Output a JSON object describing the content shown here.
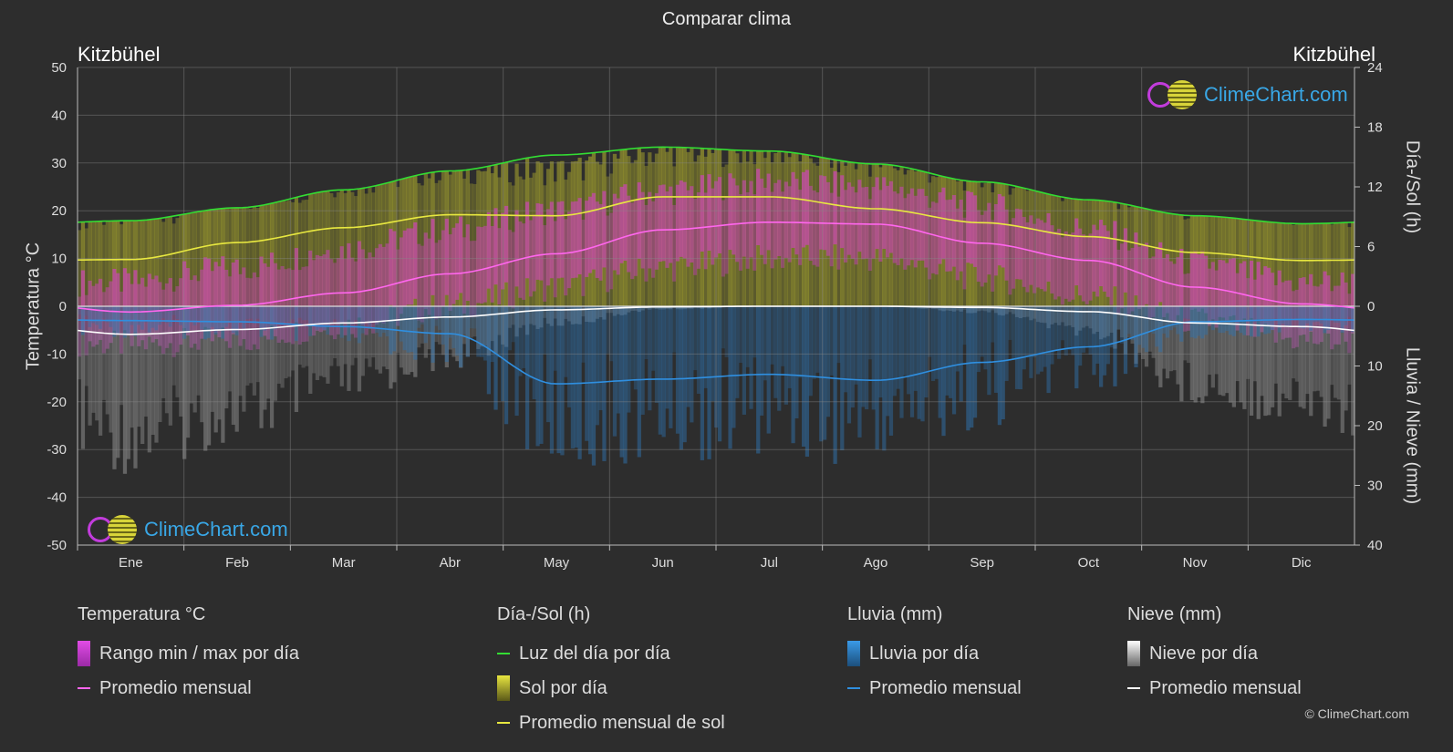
{
  "title": "Comparar clima",
  "location_left": "Kitzbühel",
  "location_right": "Kitzbühel",
  "brand": "ClimeChart.com",
  "copyright": "© ClimeChart.com",
  "colors": {
    "temp_range": "#d43cc8",
    "temp_avg": "#ff66ee",
    "daylight": "#33dd33",
    "sun_band": "#a8a62e",
    "sun_avg": "#e8e840",
    "rain_band": "#2f6fa8",
    "rain_avg": "#2f8fe0",
    "snow_band": "#8a8a8a",
    "snow_avg": "#ffffff"
  },
  "chart_data": {
    "type": "line",
    "categories": [
      "Ene",
      "Feb",
      "Mar",
      "Abr",
      "May",
      "Jun",
      "Jul",
      "Ago",
      "Sep",
      "Oct",
      "Nov",
      "Dic"
    ],
    "left_axis": {
      "label": "Temperatura °C",
      "min": -50,
      "max": 50,
      "ticks": [
        50,
        40,
        30,
        20,
        10,
        0,
        -10,
        -20,
        -30,
        -40,
        -50
      ]
    },
    "right_axis_top": {
      "label": "Día-/Sol (h)",
      "min": 0,
      "max": 24,
      "ticks": [
        24,
        18,
        12,
        6,
        0
      ]
    },
    "right_axis_bottom": {
      "label": "Lluvia / Nieve (mm)",
      "min": 0,
      "max": 40,
      "ticks": [
        0,
        10,
        20,
        30,
        40
      ]
    },
    "grid": true,
    "series": [
      {
        "name": "Luz del día por día",
        "axis": "hours",
        "values": [
          8.6,
          9.9,
          11.7,
          13.6,
          15.2,
          16.0,
          15.6,
          14.3,
          12.5,
          10.7,
          9.1,
          8.3
        ]
      },
      {
        "name": "Promedio mensual de sol",
        "axis": "hours",
        "values": [
          4.7,
          6.4,
          7.9,
          9.2,
          9.1,
          11.0,
          11.0,
          9.8,
          8.4,
          7.0,
          5.4,
          4.6
        ]
      },
      {
        "name": "Temperatura promedio mensual",
        "axis": "temp",
        "values": [
          -1.2,
          0.2,
          2.8,
          6.8,
          11.0,
          16.0,
          17.6,
          17.2,
          13.2,
          9.6,
          4.0,
          0.5
        ]
      },
      {
        "name": "Temperatura máx por día",
        "axis": "temp",
        "values": [
          5,
          8,
          12,
          16,
          20,
          24,
          26,
          25,
          21,
          16,
          9,
          5
        ]
      },
      {
        "name": "Temperatura mín por día",
        "axis": "temp",
        "values": [
          -8,
          -7,
          -4,
          0,
          4,
          8,
          10,
          10,
          6,
          2,
          -3,
          -7
        ]
      },
      {
        "name": "Lluvia promedio mensual",
        "axis": "precip",
        "values": [
          2.4,
          2.6,
          3.4,
          4.6,
          13.0,
          12.2,
          11.4,
          12.4,
          9.4,
          6.8,
          2.6,
          2.2
        ]
      },
      {
        "name": "Nieve promedio mensual",
        "axis": "precip",
        "values": [
          4.7,
          3.9,
          2.8,
          1.8,
          0.6,
          0.1,
          0.0,
          0.0,
          0.2,
          0.9,
          2.8,
          3.4
        ]
      }
    ]
  },
  "legend": {
    "groups": [
      {
        "title": "Temperatura °C",
        "items": [
          {
            "label": "Rango min / max por día",
            "kind": "bar",
            "color": "#d43cc8"
          },
          {
            "label": "Promedio mensual",
            "kind": "line",
            "color": "#ff66ee"
          }
        ]
      },
      {
        "title": "Día-/Sol (h)",
        "items": [
          {
            "label": "Luz del día por día",
            "kind": "line",
            "color": "#33dd33"
          },
          {
            "label": "Sol por día",
            "kind": "bar",
            "color": "#c8c634"
          },
          {
            "label": "Promedio mensual de sol",
            "kind": "line",
            "color": "#e8e840"
          }
        ]
      },
      {
        "title": "Lluvia (mm)",
        "items": [
          {
            "label": "Lluvia por día",
            "kind": "bar",
            "color": "#2f8fe0"
          },
          {
            "label": "Promedio mensual",
            "kind": "line",
            "color": "#2f8fe0"
          }
        ]
      },
      {
        "title": "Nieve (mm)",
        "items": [
          {
            "label": "Nieve por día",
            "kind": "bar",
            "color": "#cccccc"
          },
          {
            "label": "Promedio mensual",
            "kind": "line",
            "color": "#ffffff"
          }
        ]
      }
    ]
  }
}
